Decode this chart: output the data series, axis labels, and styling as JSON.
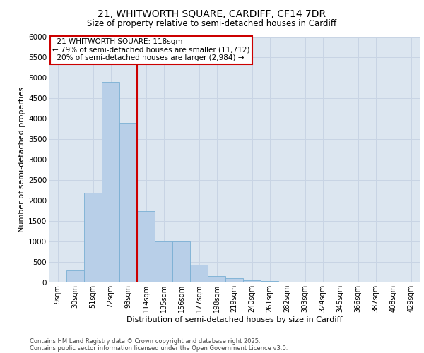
{
  "title_line1": "21, WHITWORTH SQUARE, CARDIFF, CF14 7DR",
  "title_line2": "Size of property relative to semi-detached houses in Cardiff",
  "xlabel": "Distribution of semi-detached houses by size in Cardiff",
  "ylabel": "Number of semi-detached properties",
  "categories": [
    "9sqm",
    "30sqm",
    "51sqm",
    "72sqm",
    "93sqm",
    "114sqm",
    "135sqm",
    "156sqm",
    "177sqm",
    "198sqm",
    "219sqm",
    "240sqm",
    "261sqm",
    "282sqm",
    "303sqm",
    "324sqm",
    "345sqm",
    "366sqm",
    "387sqm",
    "408sqm",
    "429sqm"
  ],
  "values": [
    15,
    300,
    2200,
    4900,
    3900,
    1750,
    1000,
    1000,
    430,
    160,
    110,
    60,
    30,
    15,
    8,
    4,
    2,
    1,
    1,
    1,
    1
  ],
  "bar_color": "#b8cfe8",
  "bar_edge_color": "#7aafd4",
  "grid_color": "#c8d4e4",
  "background_color": "#dce6f0",
  "annotation_box_color": "#ffffff",
  "annotation_border_color": "#cc0000",
  "property_line_color": "#cc0000",
  "property_label": "21 WHITWORTH SQUARE: 118sqm",
  "pct_smaller": 79,
  "count_smaller": 11712,
  "pct_larger": 20,
  "count_larger": 2984,
  "ylim": [
    0,
    6000
  ],
  "yticks": [
    0,
    500,
    1000,
    1500,
    2000,
    2500,
    3000,
    3500,
    4000,
    4500,
    5000,
    5500,
    6000
  ],
  "footer_line1": "Contains HM Land Registry data © Crown copyright and database right 2025.",
  "footer_line2": "Contains public sector information licensed under the Open Government Licence v3.0."
}
